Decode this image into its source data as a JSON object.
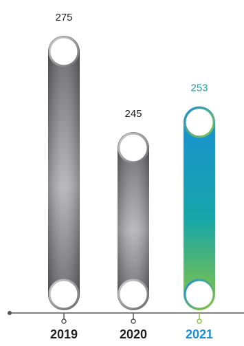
{
  "chart_data": {
    "type": "bar",
    "categories": [
      "2019",
      "2020",
      "2021"
    ],
    "values": [
      275,
      245,
      253
    ],
    "highlight_index": 2,
    "title": "",
    "xlabel": "",
    "ylabel": "",
    "grid": false,
    "legend": "none"
  },
  "colors": {
    "gray_dark": "#5a5a5c",
    "gray_light": "#b5b5b8",
    "blue": "#1a8fd6",
    "teal": "#16a6a8",
    "green": "#8cc63f",
    "text_default": "#222222",
    "value_highlight": "#1aa3b0",
    "year_highlight": "#1a8fd6",
    "axis": "#555555"
  }
}
